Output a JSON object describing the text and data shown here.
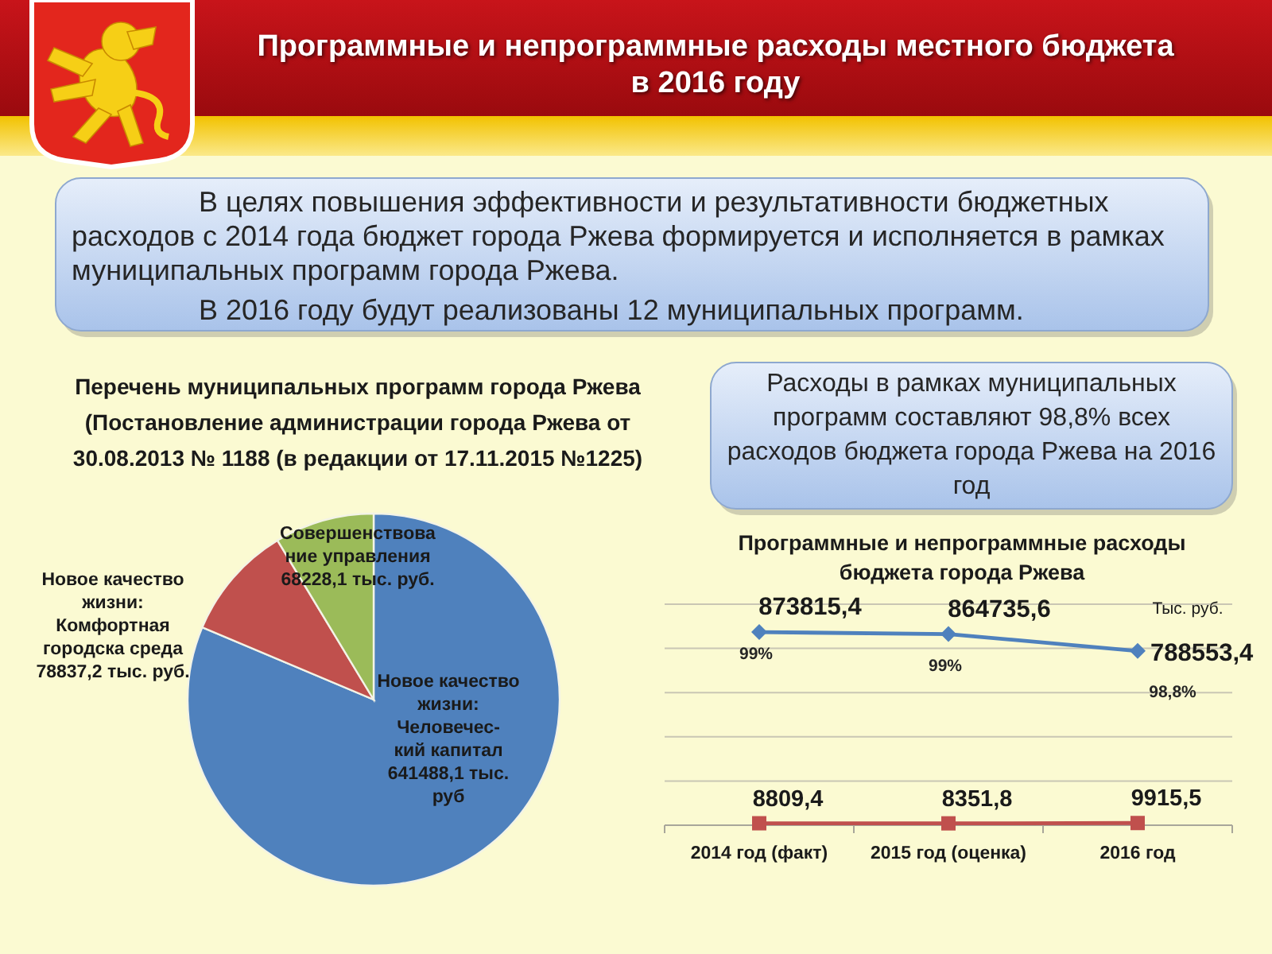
{
  "chart_data": [
    {
      "type": "other",
      "title": "Программные и непрограммные расходы местного бюджета\nв 2016 году",
      "annotations": [
        "В целях повышения эффективности и результативности бюджетных\nрасходов с 2014 года бюджет города Ржева формируется и исполняется в рамках\nмуниципальных программ города Ржева.",
        "В 2016 году будут реализованы 12 муниципальных программ."
      ]
    },
    {
      "type": "pie",
      "title": "Перечень муниципальных программ города Ржева\n(Постановление администрации города Ржева от\n30.08.2013 № 1188 (в редакции от 17.11.2015 №1225)",
      "categories": [
        "Новое качество\nжизни:\nЧеловечес-\nкий капитал",
        "Новое качество\nжизни:\nКомфортная\nгородска среда",
        "Совершенствова\nние управления"
      ],
      "values": [
        641488.1,
        78837.2,
        68228.1
      ],
      "value_labels": [
        "641488,1 тыс.\nруб",
        "78837,2 тыс. руб.",
        "68228,1 тыс. руб."
      ],
      "colors": [
        "#4f81bd",
        "#c0504d",
        "#9bbb59"
      ]
    },
    {
      "type": "other",
      "annotations": [
        "Расходы в рамках муниципальных\nпрограмм составляют 98,8% всех\nрасходов бюджета города Ржева на 2016\nгод"
      ]
    },
    {
      "type": "line",
      "title": "Программные и непрограммные расходы\nбюджета города Ржева",
      "ylabel": "Тыс. руб.",
      "categories": [
        "2014 год (факт)",
        "2015 год (оценка)",
        "2016 год"
      ],
      "series": [
        {
          "color": "#4f81bd",
          "marker": "diamond",
          "values": [
            873815.4,
            864735.6,
            788553.4
          ],
          "value_labels": [
            "873815,4",
            "864735,6",
            "788553,4"
          ]
        },
        {
          "color": "#c0504d",
          "marker": "square",
          "values": [
            8809.4,
            8351.8,
            9915.5
          ],
          "value_labels": [
            "8809,4",
            "8351,8",
            "9915,5"
          ]
        }
      ],
      "annotations": [
        {
          "text": "99%",
          "x": "2014 год (факт)",
          "y": 873815.4
        },
        {
          "text": "99%",
          "x": "2015 год (оценка)",
          "y": 864735.6
        },
        {
          "text": "98,8%",
          "x": "2016 год",
          "y": 788553.4
        }
      ],
      "ylim": [
        0,
        1000000
      ],
      "yticks": [
        {
          "value": 0,
          "label": null
        },
        {
          "value": 200000,
          "label": null
        },
        {
          "value": 400000,
          "label": null
        },
        {
          "value": 600000,
          "label": null
        },
        {
          "value": 800000,
          "label": null
        },
        {
          "value": 1000000,
          "label": null
        }
      ],
      "grid": "y",
      "tick_labels": "x"
    }
  ]
}
